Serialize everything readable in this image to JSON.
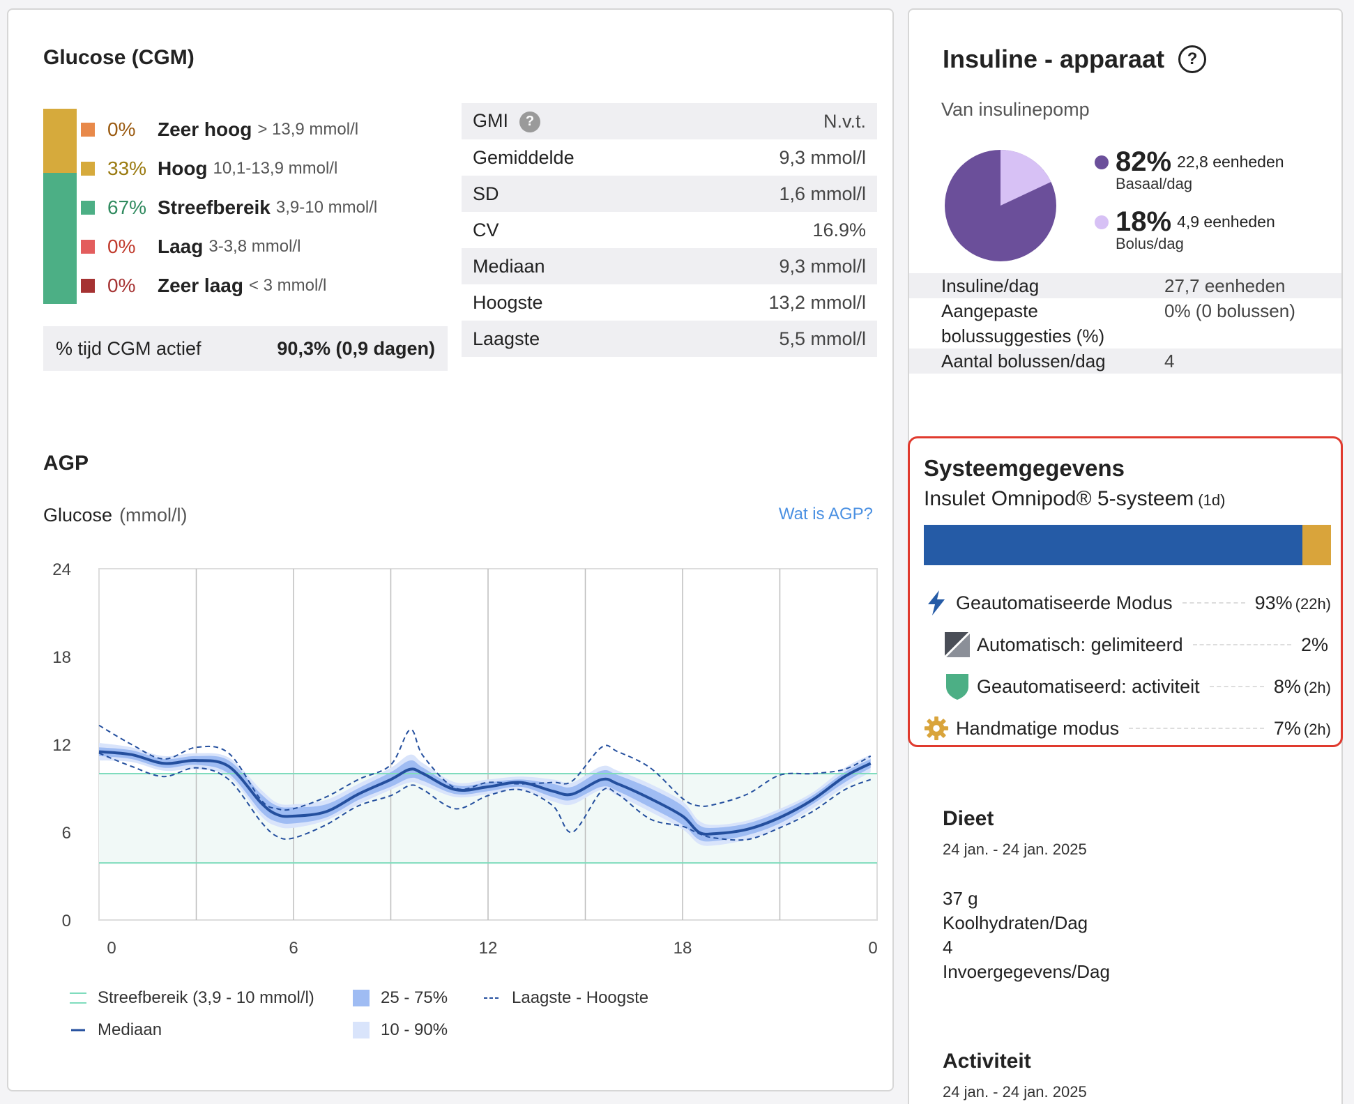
{
  "glucose": {
    "title": "Glucose (CGM)",
    "ranges": [
      {
        "pct": "0%",
        "name": "Zeer hoog",
        "range": "> 13,9 mmol/l",
        "color": "#e8894a",
        "text_color": "#9a5a10"
      },
      {
        "pct": "33%",
        "name": "Hoog",
        "range": "10,1-13,9 mmol/l",
        "color": "#d6aa3c",
        "text_color": "#9a7a10"
      },
      {
        "pct": "67%",
        "name": "Streefbereik",
        "range": "3,9-10 mmol/l",
        "color": "#4caf85",
        "text_color": "#2f8a5e"
      },
      {
        "pct": "0%",
        "name": "Laag",
        "range": "3-3,8 mmol/l",
        "color": "#e35d5d",
        "text_color": "#c0392b"
      },
      {
        "pct": "0%",
        "name": "Zeer laag",
        "range": "< 3 mmol/l",
        "color": "#a53232",
        "text_color": "#a53232"
      }
    ],
    "bar": [
      {
        "value": 33,
        "color": "#d6aa3c"
      },
      {
        "value": 67,
        "color": "#4caf85"
      }
    ],
    "cgm_active_label": "% tijd CGM actief",
    "cgm_active_value": "90,3% (0,9 dagen)"
  },
  "stats": [
    {
      "label": "GMI",
      "value": "N.v.t.",
      "help": "?"
    },
    {
      "label": "Gemiddelde",
      "value": "9,3 mmol/l"
    },
    {
      "label": "SD",
      "value": "1,6 mmol/l"
    },
    {
      "label": "CV",
      "value": "16.9%"
    },
    {
      "label": "Mediaan",
      "value": "9,3 mmol/l"
    },
    {
      "label": "Hoogste",
      "value": "13,2 mmol/l"
    },
    {
      "label": "Laagste",
      "value": "5,5 mmol/l"
    }
  ],
  "agp": {
    "title": "AGP",
    "glucose_label": "Glucose",
    "unit": "(mmol/l)",
    "link": "Wat is AGP?",
    "legend": {
      "target": "Streefbereik (3,9 - 10 mmol/l)",
      "median": "Mediaan",
      "iqr": "25 - 75%",
      "outer": "10 - 90%",
      "minmax": "Laagste - Hoogste"
    }
  },
  "chart_data": {
    "type": "line",
    "x_ticks": [
      "0",
      "6",
      "12",
      "18",
      "0"
    ],
    "y_ticks": [
      "0",
      "6",
      "12",
      "18",
      "24"
    ],
    "ylim": [
      0,
      24
    ],
    "xlim": [
      0,
      24
    ],
    "target_range": [
      3.9,
      10
    ],
    "x": [
      0,
      1,
      2,
      3,
      4,
      5,
      5.5,
      6,
      7,
      8,
      9,
      9.6,
      10,
      11,
      12,
      13,
      14,
      14.6,
      15.5,
      16,
      17,
      18,
      18.5,
      19,
      20,
      21,
      22,
      23,
      23.8
    ],
    "series": [
      {
        "name": "Mediaan",
        "values": [
          11.5,
          11.3,
          10.7,
          10.9,
          10.5,
          8.0,
          7.2,
          7.1,
          7.4,
          8.6,
          9.6,
          10.3,
          10.0,
          8.9,
          9.1,
          9.4,
          8.8,
          8.6,
          9.6,
          9.3,
          8.3,
          7.1,
          6.0,
          5.9,
          6.2,
          7.0,
          8.2,
          9.8,
          10.7
        ]
      },
      {
        "name": "p75",
        "values": [
          11.8,
          11.6,
          11.0,
          11.2,
          10.9,
          8.6,
          7.8,
          7.7,
          7.9,
          9.0,
          10.1,
          10.9,
          10.4,
          9.2,
          9.4,
          9.6,
          9.3,
          9.1,
          10.2,
          9.9,
          9.0,
          7.8,
          6.5,
          6.3,
          6.6,
          7.4,
          8.5,
          10.1,
          11.0
        ]
      },
      {
        "name": "p25",
        "values": [
          11.2,
          11.0,
          10.4,
          10.6,
          10.0,
          7.4,
          6.7,
          6.6,
          7.0,
          8.2,
          9.1,
          9.7,
          9.5,
          8.6,
          8.8,
          9.1,
          8.4,
          8.2,
          9.1,
          8.8,
          7.7,
          6.5,
          5.5,
          5.4,
          5.8,
          6.6,
          7.9,
          9.4,
          10.4
        ]
      },
      {
        "name": "p90",
        "values": [
          12.1,
          11.8,
          11.2,
          11.4,
          11.1,
          8.9,
          8.0,
          7.9,
          8.2,
          9.3,
          10.4,
          11.3,
          10.7,
          9.4,
          9.6,
          9.8,
          9.6,
          9.4,
          10.5,
          10.2,
          9.3,
          8.1,
          6.8,
          6.5,
          6.8,
          7.6,
          8.7,
          10.4,
          11.3
        ]
      },
      {
        "name": "p10",
        "values": [
          10.9,
          10.8,
          10.2,
          10.3,
          9.8,
          7.1,
          6.4,
          6.3,
          6.8,
          7.9,
          8.9,
          9.4,
          9.2,
          8.4,
          8.6,
          8.9,
          8.1,
          7.9,
          8.9,
          8.5,
          7.4,
          6.2,
          5.2,
          5.1,
          5.5,
          6.3,
          7.6,
          9.1,
          10.1
        ]
      },
      {
        "name": "Hoogste",
        "values": [
          13.3,
          12.0,
          11.0,
          11.8,
          11.4,
          8.2,
          7.6,
          7.6,
          8.4,
          9.6,
          10.6,
          13.0,
          11.2,
          9.0,
          9.4,
          9.3,
          9.4,
          9.5,
          11.8,
          11.5,
          10.4,
          8.3,
          7.8,
          7.9,
          8.6,
          9.9,
          10.0,
          10.3,
          11.2
        ]
      },
      {
        "name": "Laagste",
        "values": [
          11.4,
          10.5,
          9.8,
          10.4,
          9.6,
          6.7,
          5.7,
          5.6,
          6.5,
          7.8,
          8.5,
          9.2,
          8.9,
          7.6,
          8.5,
          8.9,
          7.8,
          6.0,
          8.8,
          8.6,
          6.9,
          6.4,
          5.9,
          5.6,
          5.5,
          6.3,
          7.4,
          8.9,
          9.6
        ]
      }
    ]
  },
  "insulin": {
    "title": "Insuline - apparaat",
    "help": "?",
    "subtitle": "Van insulinepomp",
    "basal": {
      "pct": "82%",
      "units": "22,8 eenheden",
      "label": "Basaal/dag",
      "value": 82,
      "color": "#6b4f9a"
    },
    "bolus": {
      "pct": "18%",
      "units": "4,9 eenheden",
      "label": "Bolus/dag",
      "value": 18,
      "color": "#d7c1f5"
    },
    "rows": [
      {
        "label": "Insuline/dag",
        "value": "27,7 eenheden"
      },
      {
        "label": "Aangepaste bolussuggesties (%)",
        "value": "0% (0 bolussen)"
      },
      {
        "label": "Aantal bolussen/dag",
        "value": "4"
      }
    ]
  },
  "system": {
    "title": "Systeemgegevens",
    "device": "Insulet Omnipod® 5-systeem",
    "days": "(1d)",
    "bar": [
      {
        "value": 93,
        "color": "#255ba6"
      },
      {
        "value": 7,
        "color": "#d9a43b"
      }
    ],
    "modes": [
      {
        "label": "Geautomatiseerde Modus",
        "pct": "93%",
        "dur": "(22h)",
        "icon": "lightning-bolt-icon"
      },
      {
        "label": "Automatisch: gelimiteerd",
        "pct": "2%",
        "dur": "",
        "icon": "limited-square-icon"
      },
      {
        "label": "Geautomatiseerd: activiteit",
        "pct": "8%",
        "dur": "(2h)",
        "icon": "green-shield-icon"
      },
      {
        "label": "Handmatige modus",
        "pct": "7%",
        "dur": "(2h)",
        "icon": "gear-icon"
      }
    ]
  },
  "diet": {
    "title": "Dieet",
    "date": "24 jan. - 24 jan. 2025",
    "carbs": "37 g",
    "carbs_label": "Koolhydraten/Dag",
    "entries": "4",
    "entries_label": "Invoergegevens/Dag"
  },
  "activity": {
    "title": "Activiteit",
    "date": "24 jan. - 24 jan. 2025"
  }
}
